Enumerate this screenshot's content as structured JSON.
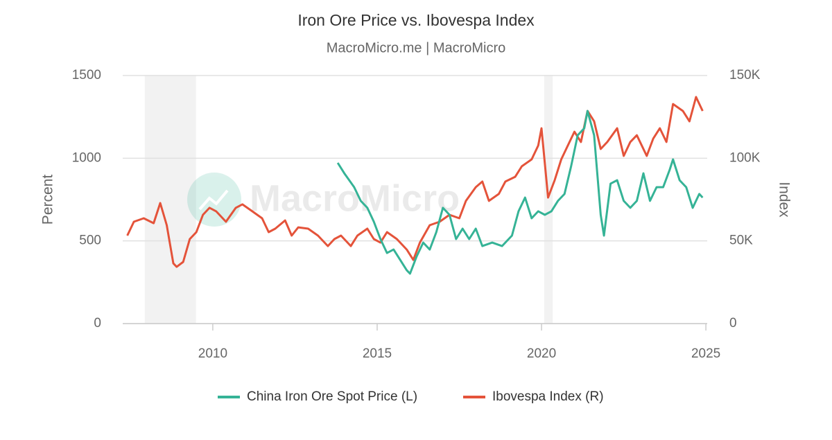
{
  "chart_data": {
    "type": "line",
    "title": "Iron Ore Price vs. Ibovespa Index",
    "subtitle": "MacroMicro.me | MacroMicro",
    "watermark": "MacroMicro",
    "y_label": "Percent",
    "y2_label": "Index",
    "xlim": [
      2007.26,
      2025.04
    ],
    "xticks": [
      2010,
      2015,
      2020,
      2025
    ],
    "ylim": [
      0,
      1500
    ],
    "yticks": [
      0,
      500,
      1000,
      1500
    ],
    "y2lim": [
      0,
      150000
    ],
    "y2ticks": [
      0,
      {
        "value": 50000,
        "label": "50K"
      },
      {
        "value": 100000,
        "label": "100K"
      },
      {
        "value": 150000,
        "label": "150K"
      }
    ],
    "grid": true,
    "legend": "bottom",
    "shaded_periods": [
      [
        2007.93,
        2009.49
      ],
      [
        2020.08,
        2020.34
      ]
    ],
    "series": [
      {
        "name": "China Iron Ore Spot Price (L)",
        "color": "#35b396",
        "axis": "y",
        "x": [
          2013.8,
          2014.0,
          2014.3,
          2014.5,
          2014.7,
          2014.9,
          2015.1,
          2015.3,
          2015.5,
          2015.7,
          2015.9,
          2016.0,
          2016.2,
          2016.4,
          2016.6,
          2016.8,
          2017.0,
          2017.2,
          2017.4,
          2017.6,
          2017.8,
          2018.0,
          2018.2,
          2018.5,
          2018.8,
          2019.1,
          2019.3,
          2019.5,
          2019.7,
          2019.9,
          2020.1,
          2020.3,
          2020.5,
          2020.7,
          2020.9,
          2021.1,
          2021.3,
          2021.4,
          2021.6,
          2021.8,
          2021.9,
          2022.1,
          2022.3,
          2022.5,
          2022.7,
          2022.9,
          2023.1,
          2023.3,
          2023.5,
          2023.7,
          2023.9,
          2024.0,
          2024.2,
          2024.4,
          2024.6,
          2024.8,
          2024.9
        ],
        "values": [
          972,
          909,
          825,
          742,
          700,
          616,
          511,
          427,
          448,
          385,
          323,
          302,
          406,
          490,
          448,
          553,
          700,
          658,
          511,
          574,
          511,
          574,
          469,
          490,
          469,
          532,
          679,
          762,
          637,
          679,
          658,
          679,
          742,
          784,
          951,
          1139,
          1181,
          1286,
          1139,
          658,
          532,
          846,
          867,
          742,
          700,
          742,
          909,
          742,
          825,
          825,
          930,
          993,
          867,
          825,
          700,
          784,
          762
        ]
      },
      {
        "name": "Ibovespa Index (R)",
        "color": "#e4533a",
        "axis": "y2",
        "x": [
          2007.4,
          2007.6,
          2007.9,
          2008.2,
          2008.4,
          2008.6,
          2008.8,
          2008.9,
          2009.1,
          2009.3,
          2009.5,
          2009.7,
          2009.9,
          2010.1,
          2010.4,
          2010.7,
          2010.9,
          2011.2,
          2011.5,
          2011.7,
          2011.9,
          2012.2,
          2012.4,
          2012.6,
          2012.9,
          2013.2,
          2013.5,
          2013.7,
          2013.9,
          2014.2,
          2014.4,
          2014.7,
          2014.9,
          2015.1,
          2015.3,
          2015.6,
          2015.9,
          2016.1,
          2016.3,
          2016.6,
          2016.9,
          2017.2,
          2017.5,
          2017.7,
          2018.0,
          2018.2,
          2018.4,
          2018.7,
          2018.9,
          2019.2,
          2019.4,
          2019.7,
          2019.9,
          2020.0,
          2020.2,
          2020.4,
          2020.6,
          2020.8,
          2021.0,
          2021.2,
          2021.4,
          2021.6,
          2021.8,
          2022.0,
          2022.3,
          2022.5,
          2022.7,
          2022.9,
          2023.2,
          2023.4,
          2023.6,
          2023.8,
          2024.0,
          2024.3,
          2024.5,
          2024.7,
          2024.9
        ],
        "values": [
          53200,
          61600,
          63700,
          60700,
          72900,
          59500,
          36400,
          34300,
          37300,
          51100,
          55300,
          65800,
          70000,
          67900,
          61600,
          70000,
          72100,
          67900,
          63700,
          55300,
          57400,
          62400,
          53200,
          58200,
          57400,
          53200,
          46900,
          51100,
          53200,
          46900,
          53200,
          57400,
          51100,
          49000,
          55300,
          51100,
          44800,
          38500,
          49000,
          59500,
          61600,
          65800,
          63700,
          74200,
          82500,
          85900,
          74200,
          78400,
          85900,
          88800,
          95100,
          99300,
          107700,
          118100,
          76200,
          86700,
          99300,
          107700,
          116000,
          109800,
          128600,
          122300,
          105600,
          109800,
          118100,
          101400,
          109800,
          113900,
          101400,
          111900,
          118100,
          109800,
          132800,
          128600,
          122300,
          137000,
          128600
        ]
      }
    ]
  }
}
